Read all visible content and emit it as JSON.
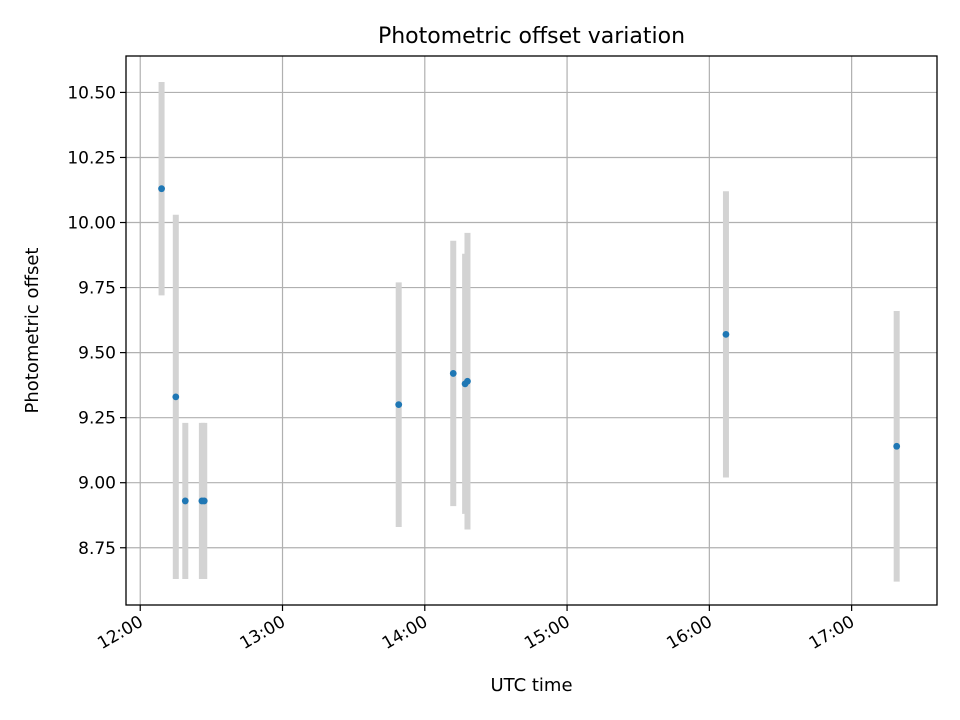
{
  "chart_data": {
    "type": "scatter",
    "title": "Photometric offset variation",
    "xlabel": "UTC time",
    "ylabel": "Photometric offset",
    "x_tick_labels": [
      "12:00",
      "13:00",
      "14:00",
      "15:00",
      "16:00",
      "17:00"
    ],
    "x_ticks": [
      "12:00",
      "13:00",
      "14:00",
      "15:00",
      "16:00",
      "17:00"
    ],
    "xlim": [
      "11:54",
      "17:36"
    ],
    "y_tick_labels": [
      "8.75",
      "9.00",
      "9.25",
      "9.50",
      "9.75",
      "10.00",
      "10.25",
      "10.50"
    ],
    "y_ticks": [
      8.75,
      9.0,
      9.25,
      9.5,
      9.75,
      10.0,
      10.25,
      10.5
    ],
    "ylim": [
      8.53,
      10.64
    ],
    "grid": true,
    "marker_color": "#1f77b4",
    "errorbar_color": "#d3d3d3",
    "points": [
      {
        "x": "12:09",
        "y": 10.13,
        "yerr": 0.41
      },
      {
        "x": "12:15",
        "y": 9.33,
        "yerr": 0.7
      },
      {
        "x": "12:19",
        "y": 8.93,
        "yerr": 0.3
      },
      {
        "x": "12:26",
        "y": 8.93,
        "yerr": 0.3
      },
      {
        "x": "12:27",
        "y": 8.93,
        "yerr": 0.3
      },
      {
        "x": "13:49",
        "y": 9.3,
        "yerr": 0.47
      },
      {
        "x": "14:12",
        "y": 9.42,
        "yerr": 0.51
      },
      {
        "x": "14:17",
        "y": 9.38,
        "yerr": 0.5
      },
      {
        "x": "14:18",
        "y": 9.39,
        "yerr": 0.57
      },
      {
        "x": "16:07",
        "y": 9.57,
        "yerr": 0.55
      },
      {
        "x": "17:19",
        "y": 9.14,
        "yerr": 0.52
      }
    ]
  }
}
